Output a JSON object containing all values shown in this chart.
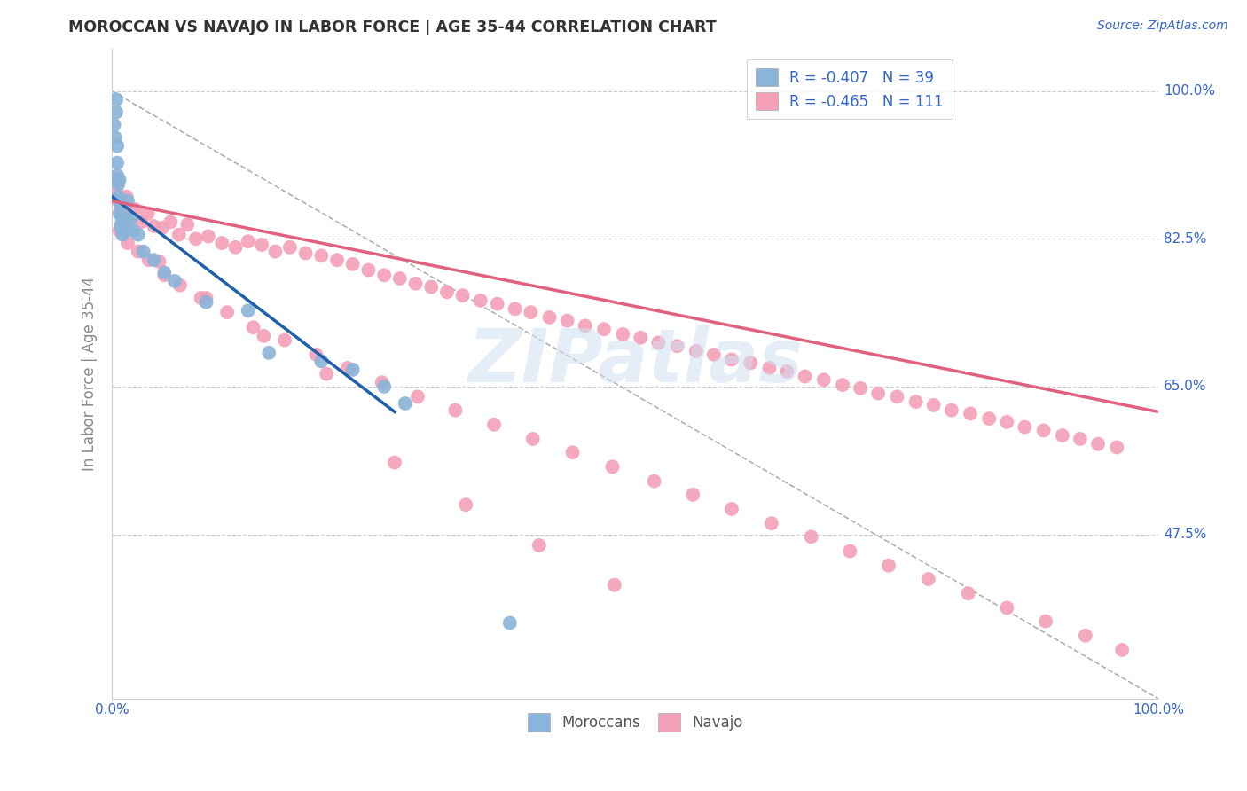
{
  "title": "MOROCCAN VS NAVAJO IN LABOR FORCE | AGE 35-44 CORRELATION CHART",
  "source": "Source: ZipAtlas.com",
  "ylabel": "In Labor Force | Age 35-44",
  "xlim": [
    0.0,
    1.0
  ],
  "ylim": [
    0.28,
    1.05
  ],
  "ytick_positions": [
    0.475,
    0.65,
    0.825,
    1.0
  ],
  "ytick_labels": [
    "47.5%",
    "65.0%",
    "82.5%",
    "100.0%"
  ],
  "xtick_positions": [
    0.0,
    1.0
  ],
  "xtick_labels": [
    "0.0%",
    "100.0%"
  ],
  "legend_blue_label": "R = -0.407   N = 39",
  "legend_pink_label": "R = -0.465   N = 111",
  "legend_bottom_blue": "Moroccans",
  "legend_bottom_pink": "Navajo",
  "blue_color": "#8ab4d9",
  "pink_color": "#f4a0b8",
  "blue_line_color": "#2060a8",
  "pink_line_color": "#e06080",
  "watermark": "ZIPatlas",
  "blue_scatter_x": [
    0.002,
    0.003,
    0.004,
    0.004,
    0.005,
    0.005,
    0.005,
    0.006,
    0.006,
    0.007,
    0.007,
    0.007,
    0.008,
    0.008,
    0.009,
    0.009,
    0.01,
    0.01,
    0.011,
    0.012,
    0.012,
    0.013,
    0.014,
    0.015,
    0.018,
    0.02,
    0.025,
    0.03,
    0.04,
    0.05,
    0.06,
    0.09,
    0.13,
    0.15,
    0.2,
    0.23,
    0.26,
    0.28,
    0.38
  ],
  "blue_scatter_y": [
    0.96,
    0.945,
    0.975,
    0.99,
    0.935,
    0.915,
    0.9,
    0.89,
    0.875,
    0.895,
    0.87,
    0.855,
    0.865,
    0.84,
    0.852,
    0.838,
    0.845,
    0.83,
    0.845,
    0.848,
    0.835,
    0.845,
    0.84,
    0.87,
    0.85,
    0.835,
    0.83,
    0.81,
    0.8,
    0.785,
    0.775,
    0.75,
    0.74,
    0.69,
    0.68,
    0.67,
    0.65,
    0.63,
    0.37
  ],
  "pink_scatter_x": [
    0.005,
    0.006,
    0.008,
    0.01,
    0.012,
    0.014,
    0.018,
    0.022,
    0.028,
    0.034,
    0.04,
    0.048,
    0.056,
    0.064,
    0.072,
    0.08,
    0.092,
    0.105,
    0.118,
    0.13,
    0.143,
    0.156,
    0.17,
    0.185,
    0.2,
    0.215,
    0.23,
    0.245,
    0.26,
    0.275,
    0.29,
    0.305,
    0.32,
    0.335,
    0.352,
    0.368,
    0.385,
    0.4,
    0.418,
    0.435,
    0.452,
    0.47,
    0.488,
    0.505,
    0.522,
    0.54,
    0.558,
    0.575,
    0.592,
    0.61,
    0.628,
    0.645,
    0.662,
    0.68,
    0.698,
    0.715,
    0.732,
    0.75,
    0.768,
    0.785,
    0.802,
    0.82,
    0.838,
    0.855,
    0.872,
    0.89,
    0.908,
    0.925,
    0.942,
    0.96,
    0.003,
    0.007,
    0.015,
    0.025,
    0.035,
    0.05,
    0.065,
    0.085,
    0.11,
    0.135,
    0.165,
    0.195,
    0.225,
    0.258,
    0.292,
    0.328,
    0.365,
    0.402,
    0.44,
    0.478,
    0.518,
    0.555,
    0.592,
    0.63,
    0.668,
    0.705,
    0.742,
    0.78,
    0.818,
    0.855,
    0.892,
    0.93,
    0.965,
    0.045,
    0.09,
    0.145,
    0.205,
    0.27,
    0.338,
    0.408,
    0.48
  ],
  "pink_scatter_y": [
    0.88,
    0.87,
    0.86,
    0.855,
    0.865,
    0.875,
    0.85,
    0.86,
    0.845,
    0.855,
    0.84,
    0.838,
    0.845,
    0.83,
    0.842,
    0.825,
    0.828,
    0.82,
    0.815,
    0.822,
    0.818,
    0.81,
    0.815,
    0.808,
    0.805,
    0.8,
    0.795,
    0.788,
    0.782,
    0.778,
    0.772,
    0.768,
    0.762,
    0.758,
    0.752,
    0.748,
    0.742,
    0.738,
    0.732,
    0.728,
    0.722,
    0.718,
    0.712,
    0.708,
    0.702,
    0.698,
    0.692,
    0.688,
    0.682,
    0.678,
    0.672,
    0.668,
    0.662,
    0.658,
    0.652,
    0.648,
    0.642,
    0.638,
    0.632,
    0.628,
    0.622,
    0.618,
    0.612,
    0.608,
    0.602,
    0.598,
    0.592,
    0.588,
    0.582,
    0.578,
    0.895,
    0.835,
    0.82,
    0.81,
    0.8,
    0.782,
    0.77,
    0.755,
    0.738,
    0.72,
    0.705,
    0.688,
    0.672,
    0.655,
    0.638,
    0.622,
    0.605,
    0.588,
    0.572,
    0.555,
    0.538,
    0.522,
    0.505,
    0.488,
    0.472,
    0.455,
    0.438,
    0.422,
    0.405,
    0.388,
    0.372,
    0.355,
    0.338,
    0.798,
    0.755,
    0.71,
    0.665,
    0.56,
    0.51,
    0.462,
    0.415
  ],
  "blue_line_x": [
    0.0,
    0.27
  ],
  "blue_line_y": [
    0.875,
    0.62
  ],
  "pink_line_x": [
    0.0,
    1.0
  ],
  "pink_line_y": [
    0.87,
    0.62
  ],
  "diag_line_x": [
    0.0,
    1.0
  ],
  "diag_line_y": [
    1.0,
    0.28
  ]
}
